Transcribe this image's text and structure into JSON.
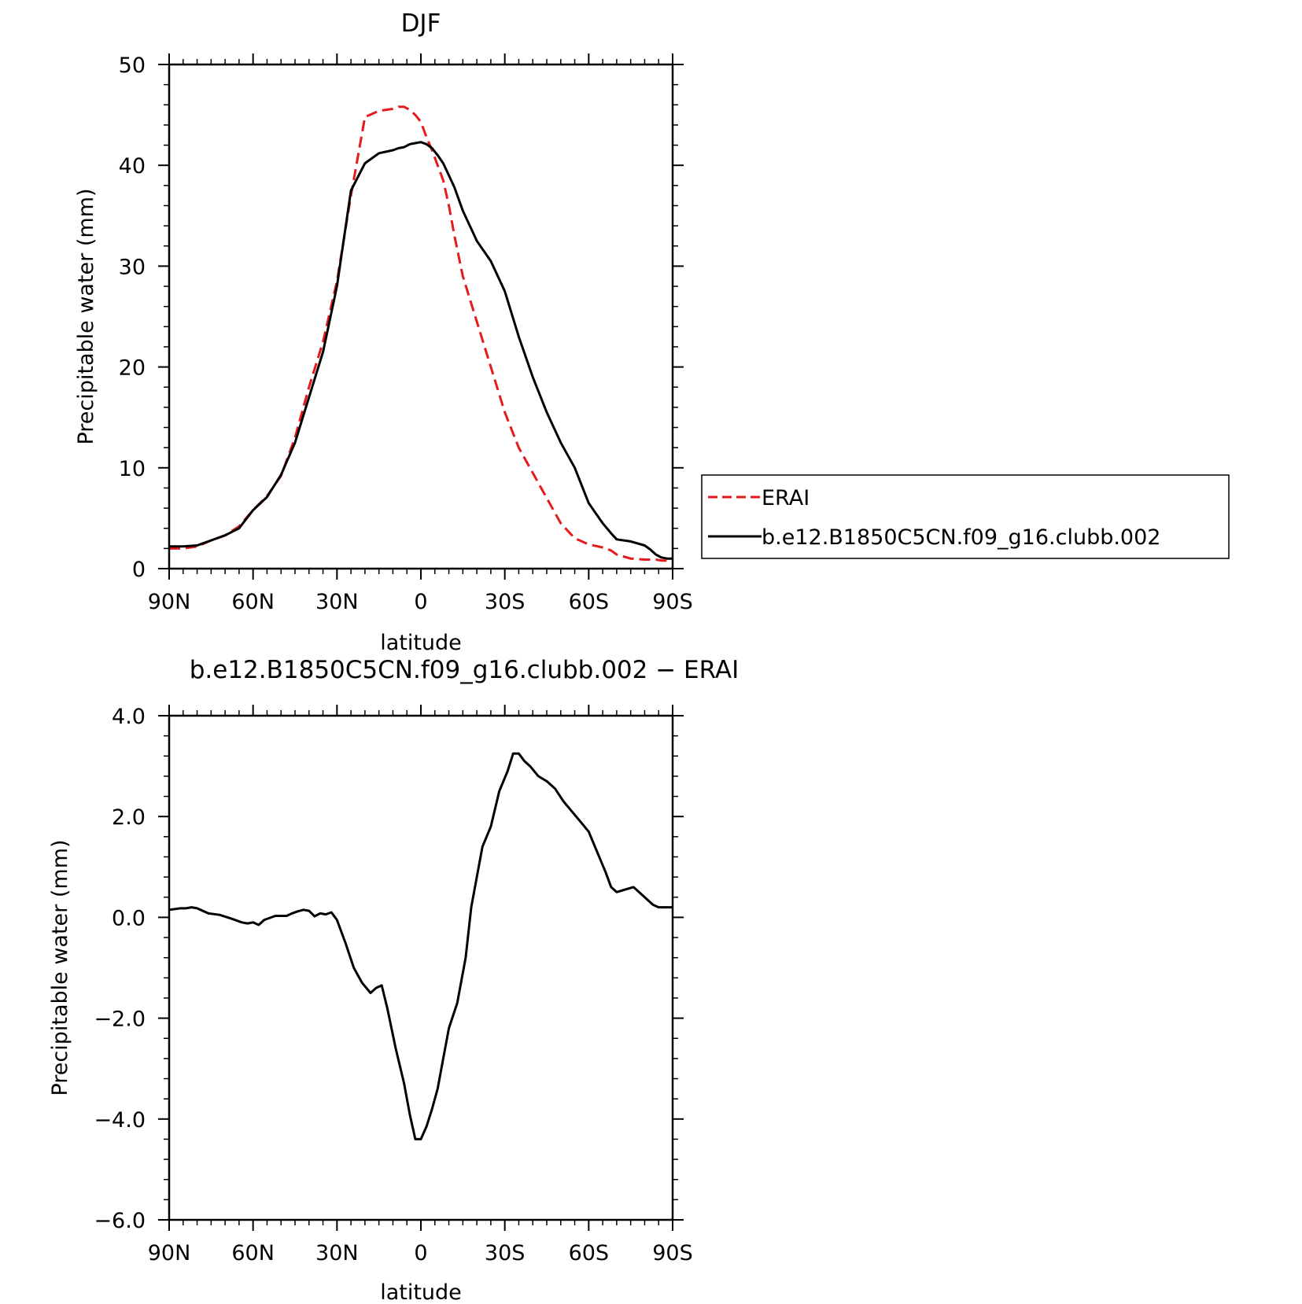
{
  "chart_data": [
    {
      "type": "line",
      "title": "DJF",
      "xlabel": "latitude",
      "ylabel": "Precipitable water (mm)",
      "xlim": [
        90,
        -90
      ],
      "ylim": [
        0,
        50
      ],
      "x_ticks": [
        90,
        60,
        30,
        0,
        -30,
        -60,
        -90
      ],
      "x_tick_labels": [
        "90N",
        "60N",
        "30N",
        "0",
        "30S",
        "60S",
        "90S"
      ],
      "y_ticks": [
        0,
        10,
        20,
        30,
        40,
        50
      ],
      "y_tick_labels": [
        "0",
        "10",
        "20",
        "30",
        "40",
        "50"
      ],
      "legend": {
        "placement": "right",
        "entries": [
          "ERAI",
          "b.e12.B1850C5CN.f09_g16.clubb.002"
        ]
      },
      "x": [
        90,
        85,
        80,
        75,
        70,
        65,
        60,
        55,
        50,
        45,
        40,
        35,
        30,
        25,
        20,
        15,
        10,
        8,
        6,
        4,
        2,
        0,
        -2,
        -4,
        -6,
        -8,
        -10,
        -12,
        -15,
        -20,
        -25,
        -30,
        -35,
        -40,
        -45,
        -50,
        -55,
        -60,
        -65,
        -68,
        -70,
        -75,
        -80,
        -82,
        -84,
        -86,
        -88,
        -90
      ],
      "series": [
        {
          "name": "ERAI",
          "color": "#e41a1c",
          "dash": "dashed",
          "values": [
            2.0,
            2.0,
            2.2,
            2.8,
            3.3,
            4.2,
            5.8,
            7.2,
            9.2,
            13.0,
            18.0,
            22.5,
            28.5,
            37.0,
            44.8,
            45.4,
            45.6,
            45.8,
            45.8,
            45.5,
            45.0,
            44.3,
            42.8,
            41.5,
            40.0,
            38.5,
            36.0,
            33.0,
            29.0,
            24.5,
            20.0,
            15.5,
            12.0,
            9.5,
            7.0,
            4.5,
            3.0,
            2.4,
            2.1,
            1.8,
            1.4,
            1.0,
            0.9,
            0.9,
            0.9,
            0.8,
            0.8,
            0.8
          ]
        },
        {
          "name": "b.e12.B1850C5CN.f09_g16.clubb.002",
          "color": "#000000",
          "dash": "solid",
          "values": [
            2.2,
            2.2,
            2.3,
            2.8,
            3.3,
            4.0,
            5.8,
            7.1,
            9.3,
            12.5,
            17.0,
            21.5,
            28.0,
            37.5,
            40.2,
            41.2,
            41.5,
            41.7,
            41.8,
            42.1,
            42.2,
            42.3,
            42.1,
            41.7,
            41.0,
            40.2,
            39.0,
            37.8,
            35.5,
            32.5,
            30.5,
            27.5,
            23.0,
            19.0,
            15.5,
            12.5,
            10.0,
            6.5,
            4.5,
            3.5,
            2.9,
            2.7,
            2.3,
            1.9,
            1.4,
            1.1,
            1.0,
            1.0
          ]
        }
      ]
    },
    {
      "type": "line",
      "title": "b.e12.B1850C5CN.f09_g16.clubb.002 − ERAI",
      "xlabel": "latitude",
      "ylabel": "Precipitable water (mm)",
      "xlim": [
        90,
        -90
      ],
      "ylim": [
        -6,
        4
      ],
      "x_ticks": [
        90,
        60,
        30,
        0,
        -30,
        -60,
        -90
      ],
      "x_tick_labels": [
        "90N",
        "60N",
        "30N",
        "0",
        "30S",
        "60S",
        "90S"
      ],
      "y_ticks": [
        -6,
        -4,
        -2,
        0,
        2,
        4
      ],
      "y_tick_labels": [
        "−6.0",
        "−4.0",
        "−2.0",
        "0.0",
        "2.0",
        "4.0"
      ],
      "x": [
        90,
        86,
        84,
        82,
        80,
        76,
        72,
        68,
        64,
        62,
        60,
        58,
        56,
        52,
        48,
        46,
        44,
        42,
        40,
        38,
        36,
        34,
        32,
        30,
        27,
        24,
        21,
        18,
        16,
        14,
        12,
        9,
        6,
        4,
        2,
        0,
        -2,
        -4,
        -6,
        -8,
        -10,
        -13,
        -16,
        -18,
        -20,
        -22,
        -25,
        -28,
        -31,
        -33,
        -35,
        -37,
        -39,
        -42,
        -45,
        -48,
        -51,
        -54,
        -57,
        -60,
        -63,
        -66,
        -68,
        -70,
        -73,
        -76,
        -78,
        -81,
        -83,
        -85,
        -87,
        -88,
        -90
      ],
      "series": [
        {
          "name": "",
          "color": "#000000",
          "dash": "solid",
          "values": [
            0.15,
            0.18,
            0.18,
            0.2,
            0.18,
            0.08,
            0.05,
            -0.02,
            -0.1,
            -0.12,
            -0.1,
            -0.15,
            -0.05,
            0.03,
            0.03,
            0.08,
            0.12,
            0.15,
            0.13,
            0.02,
            0.08,
            0.06,
            0.1,
            -0.05,
            -0.5,
            -1.0,
            -1.3,
            -1.5,
            -1.4,
            -1.35,
            -1.8,
            -2.6,
            -3.3,
            -3.9,
            -4.4,
            -4.4,
            -4.15,
            -3.8,
            -3.4,
            -2.8,
            -2.2,
            -1.7,
            -0.8,
            0.2,
            0.8,
            1.4,
            1.8,
            2.5,
            2.9,
            3.25,
            3.25,
            3.1,
            3.0,
            2.8,
            2.7,
            2.55,
            2.3,
            2.1,
            1.9,
            1.7,
            1.3,
            0.9,
            0.6,
            0.5,
            0.55,
            0.6,
            0.5,
            0.35,
            0.25,
            0.2,
            0.2,
            0.2,
            0.2
          ]
        }
      ]
    }
  ]
}
